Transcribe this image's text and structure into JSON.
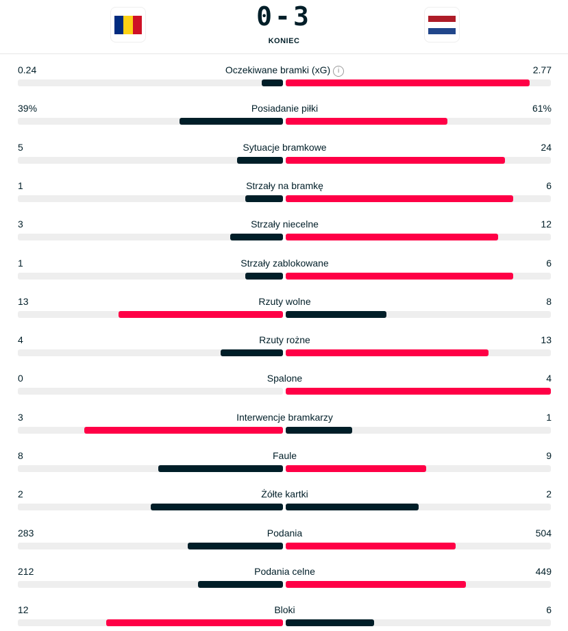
{
  "header": {
    "home_score": "0",
    "separator": "-",
    "away_score": "3",
    "status": "KONIEC",
    "home_flag": {
      "country": "Romania",
      "colors": [
        "#002b7f",
        "#fcd116",
        "#ce1126"
      ]
    },
    "away_flag": {
      "country": "Netherlands",
      "colors": [
        "#ae1c28",
        "#ffffff",
        "#21468b"
      ]
    }
  },
  "colors": {
    "leader": "#ff0046",
    "trailer": "#001e28",
    "track": "#eeeeee"
  },
  "stats": [
    {
      "name": "Oczekiwane bramki (xG)",
      "home": "0.24",
      "away": "2.77",
      "info": "i"
    },
    {
      "name": "Posiadanie piłki",
      "home": "39%",
      "away": "61%"
    },
    {
      "name": "Sytuacje bramkowe",
      "home": "5",
      "away": "24"
    },
    {
      "name": "Strzały na bramkę",
      "home": "1",
      "away": "6"
    },
    {
      "name": "Strzały niecelne",
      "home": "3",
      "away": "12"
    },
    {
      "name": "Strzały zablokowane",
      "home": "1",
      "away": "6"
    },
    {
      "name": "Rzuty wolne",
      "home": "13",
      "away": "8"
    },
    {
      "name": "Rzuty rożne",
      "home": "4",
      "away": "13"
    },
    {
      "name": "Spalone",
      "home": "0",
      "away": "4"
    },
    {
      "name": "Interwencje bramkarzy",
      "home": "3",
      "away": "1"
    },
    {
      "name": "Faule",
      "home": "8",
      "away": "9"
    },
    {
      "name": "Żółte kartki",
      "home": "2",
      "away": "2"
    },
    {
      "name": "Podania",
      "home": "283",
      "away": "504"
    },
    {
      "name": "Podania celne",
      "home": "212",
      "away": "449"
    },
    {
      "name": "Bloki",
      "home": "12",
      "away": "6"
    }
  ]
}
